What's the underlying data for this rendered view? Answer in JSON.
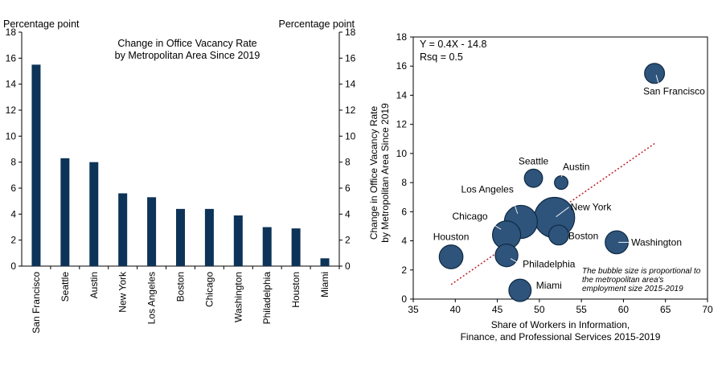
{
  "colors": {
    "bar": "#0d3358",
    "bubble_fill": "#2f547b",
    "bubble_stroke": "#0d2944",
    "trend": "#c0272d",
    "axis": "#000000"
  },
  "chart_data": [
    {
      "type": "bar",
      "title_lines": [
        "Change in Office Vacancy Rate",
        "by Metropolitan Area Since 2019"
      ],
      "ylabel_left": "Percentage point",
      "ylabel_right": "Percentage point",
      "ylim": [
        0,
        18
      ],
      "yticks": [
        0,
        2,
        4,
        6,
        8,
        10,
        12,
        14,
        16,
        18
      ],
      "categories": [
        "San Francisco",
        "Seattle",
        "Austin",
        "New York",
        "Los Angeles",
        "Boston",
        "Chicago",
        "Washington",
        "Philadelphia",
        "Houston",
        "Miami"
      ],
      "values": [
        15.5,
        8.3,
        8.0,
        5.6,
        5.3,
        4.4,
        4.4,
        3.9,
        3.0,
        2.9,
        0.6
      ],
      "grid": false
    },
    {
      "type": "scatter",
      "equation": "Y = 0.4X - 14.8",
      "rsq": "Rsq = 0.5",
      "xlabel_lines": [
        "Share of Workers in Information,",
        "Finance, and Professional Services 2015-2019"
      ],
      "ylabel_lines": [
        "Change in Office Vacancy Rate",
        "by Metropolitan Area Since 2019"
      ],
      "xlim": [
        35,
        70
      ],
      "ylim": [
        0,
        18
      ],
      "xticks": [
        35,
        40,
        45,
        50,
        55,
        60,
        65,
        70
      ],
      "yticks": [
        0,
        2,
        4,
        6,
        8,
        10,
        12,
        14,
        16,
        18
      ],
      "note_lines": [
        "The bubble size is proportional to",
        "the metropolitan area's",
        "employment size 2015-2019"
      ],
      "trend": {
        "slope": 0.4,
        "intercept": -14.8,
        "x_range": [
          39.5,
          63.7
        ]
      },
      "points": [
        {
          "name": "San Francisco",
          "x": 63.7,
          "y": 15.5,
          "size": 2.4,
          "label_pos": "below"
        },
        {
          "name": "Seattle",
          "x": 49.3,
          "y": 8.3,
          "size": 2.0,
          "label_pos": "above"
        },
        {
          "name": "Austin",
          "x": 52.6,
          "y": 8.0,
          "size": 1.1,
          "label_pos": "upper-right"
        },
        {
          "name": "New York",
          "x": 51.8,
          "y": 5.6,
          "size": 9.8,
          "label_pos": "right"
        },
        {
          "name": "Los Angeles",
          "x": 47.8,
          "y": 5.3,
          "size": 6.6,
          "label_pos": "upper-left"
        },
        {
          "name": "Chicago",
          "x": 46.1,
          "y": 4.4,
          "size": 4.8,
          "label_pos": "left"
        },
        {
          "name": "Boston",
          "x": 52.3,
          "y": 4.4,
          "size": 2.4,
          "label_pos": "right"
        },
        {
          "name": "Washington",
          "x": 59.2,
          "y": 3.9,
          "size": 3.2,
          "label_pos": "right"
        },
        {
          "name": "Philadelphia",
          "x": 46.1,
          "y": 3.0,
          "size": 3.1,
          "label_pos": "right"
        },
        {
          "name": "Houston",
          "x": 39.5,
          "y": 2.9,
          "size": 3.4,
          "label_pos": "above"
        },
        {
          "name": "Miami",
          "x": 47.7,
          "y": 0.6,
          "size": 3.0,
          "label_pos": "right"
        }
      ]
    }
  ]
}
